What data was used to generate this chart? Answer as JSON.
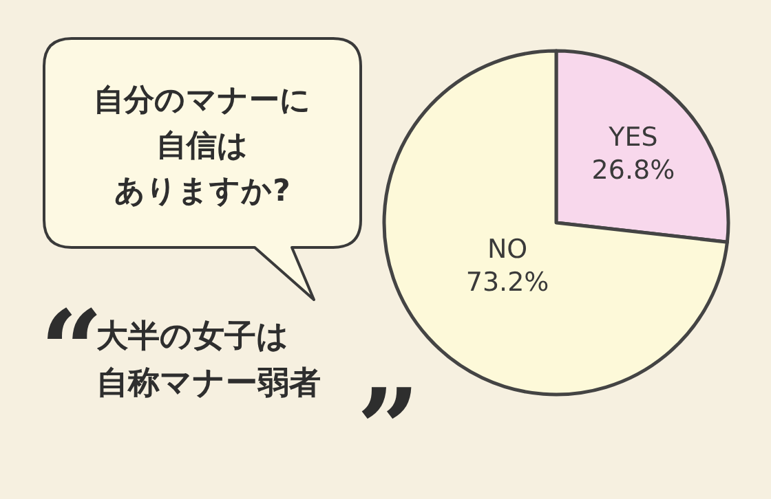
{
  "chart_data": {
    "type": "pie",
    "title": "自分のマナーに自信はありますか?",
    "categories": [
      "YES",
      "NO"
    ],
    "values": [
      26.8,
      73.2
    ],
    "colors": [
      "#f8d8ec",
      "#fdf9d9"
    ],
    "value_labels": [
      "26.8%",
      "73.2%"
    ],
    "annotations": [
      "“",
      "大半の女子は自称マナー弱者",
      "”"
    ]
  }
}
